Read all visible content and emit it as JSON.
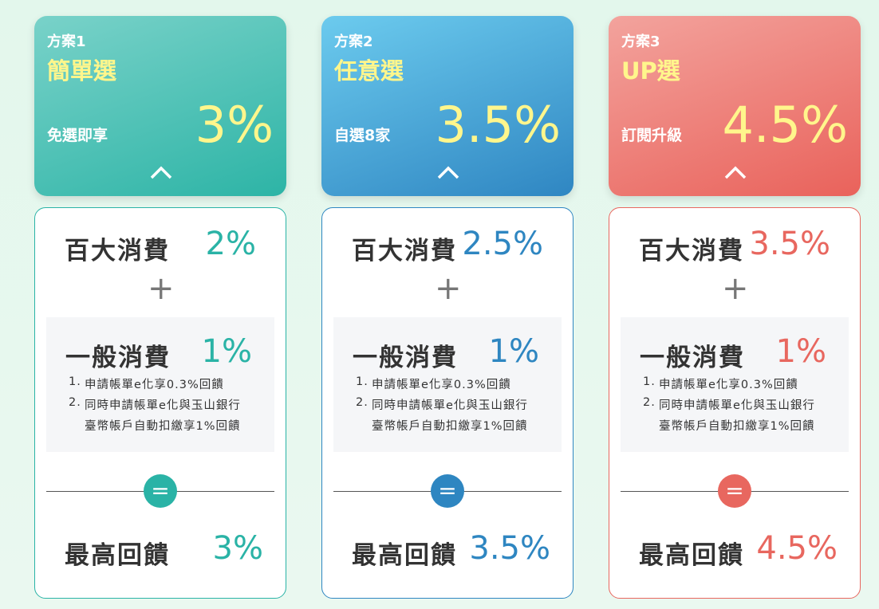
{
  "plans": [
    {
      "label": "方案1",
      "name": "簡單選",
      "subtitle": "免選即享",
      "rate": "3%",
      "top": {
        "label": "百大消費",
        "value": "2%"
      },
      "general": {
        "label": "一般消費",
        "value": "1%",
        "notes": [
          {
            "num": "1.",
            "lines": [
              "申請帳單e化享0.3%回饋"
            ]
          },
          {
            "num": "2.",
            "lines": [
              "同時申請帳單e化與玉山銀行",
              "臺幣帳戶自動扣繳享1%回饋"
            ]
          }
        ]
      },
      "max": {
        "label": "最高回饋",
        "value": "3%"
      }
    },
    {
      "label": "方案2",
      "name": "任意選",
      "subtitle": "自選8家",
      "rate": "3.5%",
      "top": {
        "label": "百大消費",
        "value": "2.5%"
      },
      "general": {
        "label": "一般消費",
        "value": "1%",
        "notes": [
          {
            "num": "1.",
            "lines": [
              "申請帳單e化享0.3%回饋"
            ]
          },
          {
            "num": "2.",
            "lines": [
              "同時申請帳單e化與玉山銀行",
              "臺幣帳戶自動扣繳享1%回饋"
            ]
          }
        ]
      },
      "max": {
        "label": "最高回饋",
        "value": "3.5%"
      }
    },
    {
      "label": "方案3",
      "name": "UP選",
      "subtitle": "訂閱升級",
      "rate": "4.5%",
      "top": {
        "label": "百大消費",
        "value": "3.5%"
      },
      "general": {
        "label": "一般消費",
        "value": "1%",
        "notes": [
          {
            "num": "1.",
            "lines": [
              "申請帳單e化享0.3%回饋"
            ]
          },
          {
            "num": "2.",
            "lines": [
              "同時申請帳單e化與玉山銀行",
              "臺幣帳戶自動扣繳享1%回饋"
            ]
          }
        ]
      },
      "max": {
        "label": "最高回饋",
        "value": "4.5%"
      }
    }
  ]
}
